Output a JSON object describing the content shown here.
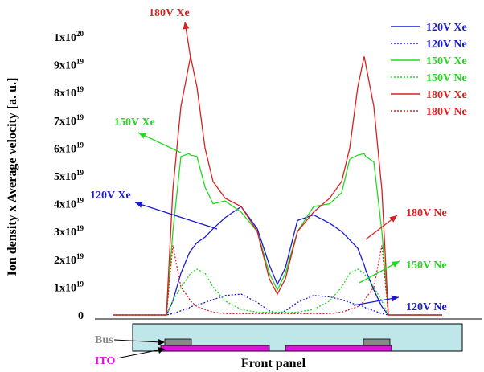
{
  "chart_data": {
    "type": "line",
    "ylabel": "Ion density x Average velocity [a. u.]",
    "xlim": [
      0,
      410
    ],
    "ylim": [
      0,
      1e+20
    ],
    "yticks": [
      0,
      {
        "value": 1e+19,
        "label": "1x10",
        "exponent": "19"
      },
      {
        "value": 2e+19,
        "label": "2x10",
        "exponent": "19"
      },
      {
        "value": 3e+19,
        "label": "3x10",
        "exponent": "19"
      },
      {
        "value": 4e+19,
        "label": "4x10",
        "exponent": "19"
      },
      {
        "value": 5e+19,
        "label": "5x10",
        "exponent": "19"
      },
      {
        "value": 6e+19,
        "label": "6x10",
        "exponent": "19"
      },
      {
        "value": 7e+19,
        "label": "7x10",
        "exponent": "19"
      },
      {
        "value": 8e+19,
        "label": "8x10",
        "exponent": "19"
      },
      {
        "value": 9e+19,
        "label": "9x10",
        "exponent": "19"
      },
      {
        "value": 1e+20,
        "label": "1x10",
        "exponent": "20"
      }
    ],
    "x": [
      0,
      67,
      75,
      85,
      95,
      97,
      105,
      115,
      125,
      140,
      160,
      180,
      195,
      205,
      215,
      230,
      250,
      270,
      285,
      295,
      305,
      313,
      315,
      325,
      335,
      343,
      410
    ],
    "series": [
      {
        "name": "120V Xe",
        "color": "#1a1ad0",
        "style": "solid",
        "values": [
          0,
          0,
          5e+18,
          1.5e+19,
          2.2e+19,
          2.3e+19,
          2.6e+19,
          2.8e+19,
          3.1e+19,
          3.5e+19,
          3.9e+19,
          3.1e+19,
          1.8e+19,
          1.1e+19,
          1.7e+19,
          3.4e+19,
          3.6e+19,
          3.3e+19,
          3e+19,
          2.7e+19,
          2.4e+19,
          1.8e+19,
          1.6e+19,
          9e+18,
          3e+18,
          0,
          0
        ]
      },
      {
        "name": "120V Ne",
        "color": "#1a1ad0",
        "style": "dotted",
        "values": [
          0,
          0,
          5e+17,
          1.5e+18,
          2.5e+18,
          3e+18,
          3.5e+18,
          4.5e+18,
          5.5e+18,
          7e+18,
          7.5e+18,
          4.5e+18,
          1.5e+18,
          5e+17,
          1.5e+18,
          4.5e+18,
          7e+18,
          6.5e+18,
          5.5e+18,
          4.5e+18,
          3.5e+18,
          3e+18,
          2.5e+18,
          1.5e+18,
          5e+17,
          0,
          0
        ]
      },
      {
        "name": "150V Xe",
        "color": "#22d822",
        "style": "solid",
        "values": [
          0,
          0,
          3e+19,
          5.7e+19,
          5.8e+19,
          5.75e+19,
          5.7e+19,
          4.6e+19,
          4e+19,
          4.1e+19,
          3.7e+19,
          3e+19,
          1.5e+19,
          9e+18,
          1.5e+19,
          3e+19,
          3.9e+19,
          4e+19,
          4.4e+19,
          5.6e+19,
          5.75e+19,
          5.8e+19,
          5.7e+19,
          5.5e+19,
          3e+19,
          0,
          0
        ]
      },
      {
        "name": "150V Ne",
        "color": "#22d822",
        "style": "dotted",
        "values": [
          0,
          0,
          5e+18,
          1e+19,
          1.4e+19,
          1.5e+19,
          1.65e+19,
          1.5e+19,
          1e+19,
          5e+18,
          2e+18,
          1e+18,
          1e+18,
          1e+18,
          1e+18,
          1e+18,
          2e+18,
          5e+18,
          1e+19,
          1.5e+19,
          1.65e+19,
          1.5e+19,
          1.4e+19,
          1e+19,
          5e+18,
          0,
          0
        ]
      },
      {
        "name": "180V Xe",
        "color": "#d82020",
        "style": "solid",
        "values": [
          0,
          0,
          4.5e+19,
          7.5e+19,
          9e+19,
          9.3e+19,
          8.2e+19,
          6e+19,
          4.8e+19,
          4.2e+19,
          3.9e+19,
          3e+19,
          1.3e+19,
          7.5e+18,
          1.3e+19,
          3e+19,
          3.7e+19,
          4.2e+19,
          4.8e+19,
          6e+19,
          8.2e+19,
          9.3e+19,
          9e+19,
          7.5e+19,
          4.5e+19,
          0,
          0
        ]
      },
      {
        "name": "180V Ne",
        "color": "#d82020",
        "style": "dotted",
        "values": [
          0,
          0,
          2.5e+19,
          1e+19,
          6e+18,
          5e+18,
          3e+18,
          2e+18,
          1e+18,
          5e+17,
          5e+17,
          5e+17,
          5e+17,
          5e+17,
          5e+17,
          5e+17,
          5e+17,
          5e+17,
          1e+18,
          2e+18,
          3e+18,
          5e+18,
          6e+18,
          1e+19,
          2.5e+19,
          0,
          0
        ]
      }
    ],
    "annotations": [
      {
        "text": "180V Xe",
        "color": "#d82020"
      },
      {
        "text": "150V Xe",
        "color": "#22d822"
      },
      {
        "text": "120V Xe",
        "color": "#1a1ad0"
      },
      {
        "text": "180V Ne",
        "color": "#d82020"
      },
      {
        "text": "150V Ne",
        "color": "#22d822"
      },
      {
        "text": "120V Ne",
        "color": "#1a1ad0"
      }
    ]
  },
  "diagram": {
    "bus": "Bus",
    "ito": "ITO",
    "front_panel": "Front panel"
  }
}
